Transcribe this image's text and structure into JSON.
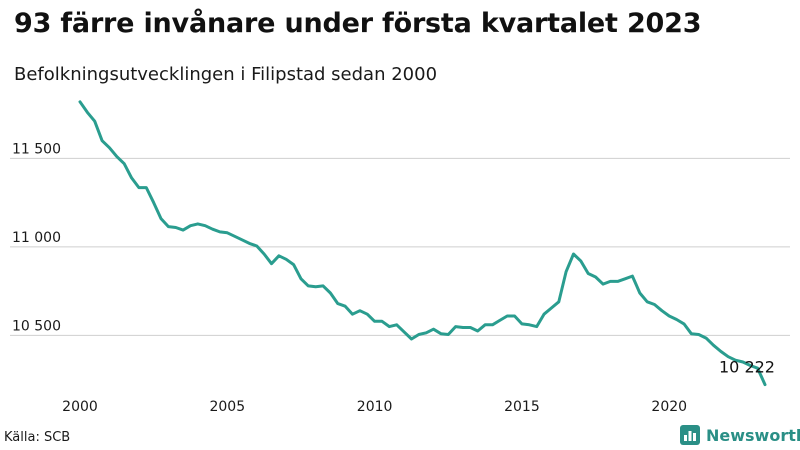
{
  "title": "93 färre invånare under första kvartalet 2023",
  "subtitle": "Befolkningsutvecklingen i Filipstad sedan 2000",
  "source": "Källa: SCB",
  "brand": {
    "name": "Newsworthy",
    "icon": "bar-chart-logo-icon",
    "color": "#2a8f86"
  },
  "chart_data": {
    "type": "line",
    "line_color": "#2a9d8f",
    "xlim": [
      2000,
      2023.25
    ],
    "ylim": [
      10220,
      11830
    ],
    "y_ticks": [
      10500,
      11000,
      11500
    ],
    "y_tick_labels": [
      "10 500",
      "11 000",
      "11 500"
    ],
    "x_ticks": [
      2000,
      2005,
      2010,
      2015,
      2020
    ],
    "x_tick_labels": [
      "2000",
      "2005",
      "2010",
      "2015",
      "2020"
    ],
    "grid": true,
    "end_label": "10 222",
    "series": [
      {
        "x": [
          2000.0,
          2000.25,
          2000.5,
          2000.75,
          2001.0,
          2001.25,
          2001.5,
          2001.75,
          2002.0,
          2002.25,
          2002.5,
          2002.75,
          2003.0,
          2003.25,
          2003.5,
          2003.75,
          2004.0,
          2004.25,
          2004.5,
          2004.75,
          2005.0,
          2005.25,
          2005.5,
          2005.75,
          2006.0,
          2006.25,
          2006.5,
          2006.75,
          2007.0,
          2007.25,
          2007.5,
          2007.75,
          2008.0,
          2008.25,
          2008.5,
          2008.75,
          2009.0,
          2009.25,
          2009.5,
          2009.75,
          2010.0,
          2010.25,
          2010.5,
          2010.75,
          2011.0,
          2011.25,
          2011.5,
          2011.75,
          2012.0,
          2012.25,
          2012.5,
          2012.75,
          2013.0,
          2013.25,
          2013.5,
          2013.75,
          2014.0,
          2014.25,
          2014.5,
          2014.75,
          2015.0,
          2015.25,
          2015.5,
          2015.75,
          2016.0,
          2016.25,
          2016.5,
          2016.75,
          2017.0,
          2017.25,
          2017.5,
          2017.75,
          2018.0,
          2018.25,
          2018.5,
          2018.75,
          2019.0,
          2019.25,
          2019.5,
          2019.75,
          2020.0,
          2020.25,
          2020.5,
          2020.75,
          2021.0,
          2021.25,
          2021.5,
          2021.75,
          2022.0,
          2022.25,
          2022.5,
          2022.75,
          2023.0,
          2023.25
        ],
        "y": [
          11820,
          11760,
          11710,
          11600,
          11560,
          11510,
          11470,
          11390,
          11335,
          11335,
          11250,
          11160,
          11115,
          11110,
          11095,
          11120,
          11130,
          11120,
          11100,
          11085,
          11080,
          11060,
          11040,
          11020,
          11005,
          10960,
          10905,
          10950,
          10930,
          10900,
          10820,
          10780,
          10775,
          10780,
          10740,
          10680,
          10665,
          10620,
          10640,
          10620,
          10580,
          10580,
          10550,
          10560,
          10520,
          10480,
          10505,
          10515,
          10535,
          10510,
          10505,
          10550,
          10545,
          10545,
          10525,
          10560,
          10560,
          10585,
          10610,
          10610,
          10565,
          10560,
          10550,
          10620,
          10655,
          10690,
          10860,
          10960,
          10920,
          10850,
          10830,
          10790,
          10805,
          10805,
          10820,
          10835,
          10740,
          10690,
          10675,
          10640,
          10610,
          10590,
          10565,
          10510,
          10505,
          10485,
          10445,
          10410,
          10380,
          10360,
          10350,
          10330,
          10315,
          10222
        ]
      }
    ]
  }
}
